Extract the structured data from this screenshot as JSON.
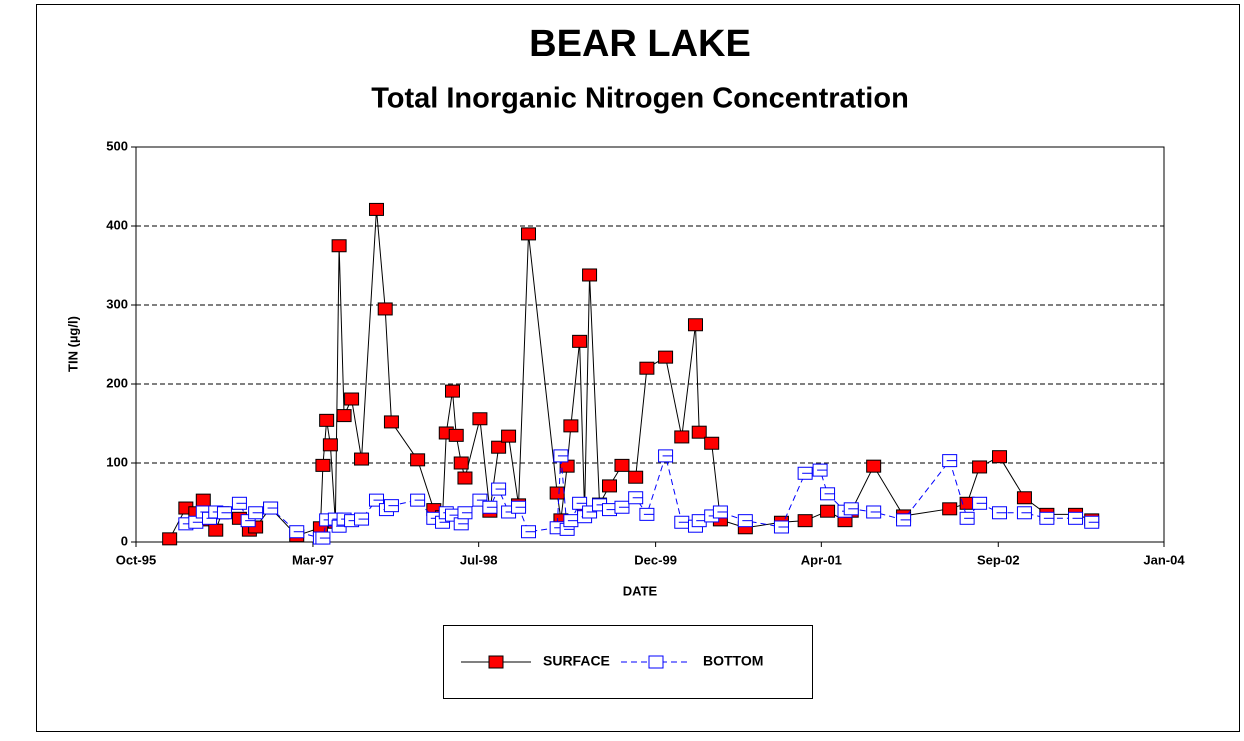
{
  "chart_data": {
    "type": "line",
    "title": "BEAR LAKE",
    "subtitle": "Total Inorganic Nitrogen Concentration",
    "x_label": "DATE",
    "y_label": "TIN (µg/l)",
    "xlim": [
      1995.75,
      2004.0
    ],
    "xticks": [
      {
        "value": 1995.75,
        "label": "Oct-95"
      },
      {
        "value": 1997.17,
        "label": "Mar-97"
      },
      {
        "value": 1998.5,
        "label": "Jul-98"
      },
      {
        "value": 1999.92,
        "label": "Dec-99"
      },
      {
        "value": 2001.25,
        "label": "Apr-01"
      },
      {
        "value": 2002.67,
        "label": "Sep-02"
      },
      {
        "value": 2004.0,
        "label": "Jan-04"
      }
    ],
    "ylim": [
      0,
      500
    ],
    "yticks": [
      0,
      100,
      200,
      300,
      400,
      500
    ],
    "grid": true,
    "legend": "bottom",
    "series": [
      {
        "name": "SURFACE",
        "color": "#ff0000",
        "line_color": "#000000",
        "dashed": false,
        "x": [
          1996.02,
          1996.15,
          1996.23,
          1996.29,
          1996.34,
          1996.39,
          1996.44,
          1996.58,
          1996.66,
          1996.71,
          1996.83,
          1997.04,
          1997.23,
          1997.25,
          1997.28,
          1997.31,
          1997.35,
          1997.38,
          1997.42,
          1997.48,
          1997.56,
          1997.68,
          1997.75,
          1997.8,
          1998.01,
          1998.14,
          1998.21,
          1998.24,
          1998.29,
          1998.32,
          1998.36,
          1998.39,
          1998.51,
          1998.59,
          1998.66,
          1998.74,
          1998.82,
          1998.9,
          1999.13,
          1999.16,
          1999.21,
          1999.24,
          1999.31,
          1999.35,
          1999.39,
          1999.47,
          1999.55,
          1999.65,
          1999.76,
          1999.85,
          2000.0,
          2000.13,
          2000.24,
          2000.27,
          2000.37,
          2000.44,
          2000.64,
          2000.93,
          2001.12,
          2001.3,
          2001.44,
          2001.49,
          2001.67,
          2001.91,
          2002.28,
          2002.42,
          2002.52,
          2002.68,
          2002.88,
          2003.06,
          2003.29,
          2003.42
        ],
        "values": [
          4,
          43,
          37,
          53,
          28,
          15,
          37,
          30,
          15,
          19,
          43,
          8,
          18,
          97,
          154,
          123,
          25,
          375,
          160,
          181,
          105,
          421,
          295,
          152,
          104,
          41,
          32,
          138,
          191,
          135,
          100,
          81,
          156,
          39,
          120,
          134,
          47,
          390,
          62,
          28,
          96,
          147,
          254,
          38,
          338,
          48,
          71,
          97,
          82,
          220,
          234,
          133,
          275,
          139,
          125,
          28,
          18,
          25,
          27,
          39,
          27,
          39,
          96,
          33,
          42,
          49,
          95,
          108,
          56,
          35,
          35,
          28
        ]
      },
      {
        "name": "BOTTOM",
        "color": "#0000ff",
        "line_color": "#0000ff",
        "dashed": true,
        "x": [
          1996.15,
          1996.23,
          1996.29,
          1996.34,
          1996.39,
          1996.46,
          1996.58,
          1996.65,
          1996.71,
          1996.83,
          1997.04,
          1997.23,
          1997.25,
          1997.28,
          1997.35,
          1997.38,
          1997.42,
          1997.48,
          1997.56,
          1997.68,
          1997.76,
          1997.8,
          1998.01,
          1998.14,
          1998.21,
          1998.24,
          1998.29,
          1998.36,
          1998.39,
          1998.51,
          1998.59,
          1998.66,
          1998.74,
          1998.82,
          1998.9,
          1999.13,
          1999.16,
          1999.21,
          1999.24,
          1999.31,
          1999.35,
          1999.39,
          1999.47,
          1999.55,
          1999.65,
          1999.76,
          1999.85,
          2000.0,
          2000.13,
          2000.24,
          2000.27,
          2000.37,
          2000.44,
          2000.64,
          2000.93,
          2001.12,
          2001.24,
          2001.3,
          2001.44,
          2001.49,
          2001.67,
          2001.91,
          2002.28,
          2002.42,
          2002.52,
          2002.68,
          2002.88,
          2003.06,
          2003.29,
          2003.42
        ],
        "values": [
          23,
          25,
          38,
          30,
          38,
          37,
          49,
          27,
          37,
          43,
          13,
          5,
          5,
          28,
          29,
          20,
          29,
          27,
          29,
          53,
          41,
          46,
          53,
          30,
          25,
          37,
          34,
          23,
          37,
          53,
          44,
          67,
          38,
          44,
          13,
          18,
          109,
          16,
          27,
          49,
          32,
          38,
          47,
          41,
          44,
          56,
          35,
          109,
          25,
          20,
          27,
          33,
          38,
          27,
          19,
          87,
          91,
          61,
          39,
          42,
          38,
          28,
          103,
          30,
          49,
          37,
          37,
          30,
          30,
          25
        ]
      }
    ]
  }
}
